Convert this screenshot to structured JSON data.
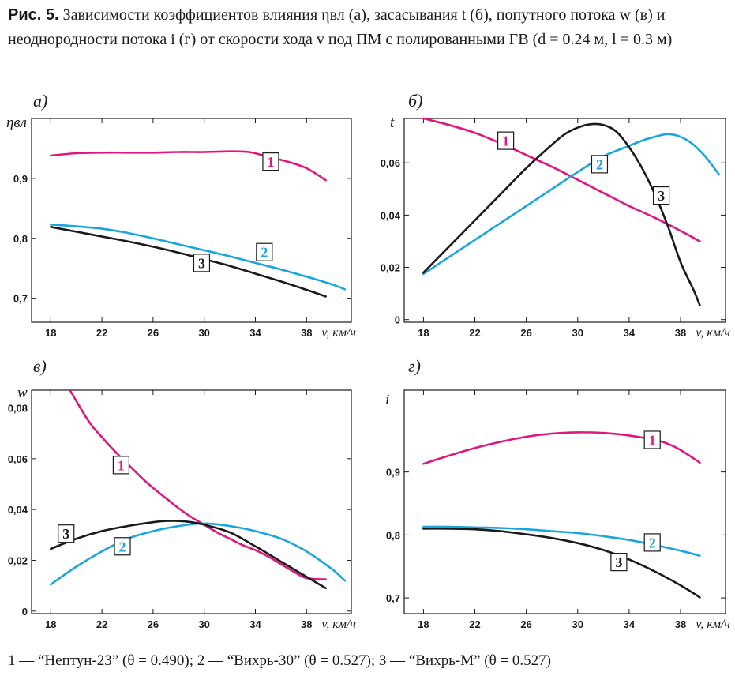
{
  "caption": {
    "label": "Рис. 5.",
    "text": "Зависимости коэффициентов влияния ηвл (а), засасывания t (б), попутного потока w (в) и неоднородности потока i (г) от скорости хода v под ПМ с полированными ГВ (d = 0.24 м, l = 0.3 м)"
  },
  "legend_text": "1 — “Нептун-23” (θ = 0.490); 2 — “Вихрь-30” (θ = 0.527); 3 — “Вихрь-М” (θ = 0.527)",
  "colors": {
    "1": "#e0157f",
    "2": "#1aa6dc",
    "3": "#1a1a1a"
  },
  "chart_data": [
    {
      "type": "line",
      "panel_label": "а)",
      "ylabel": "ηвл",
      "xlabel": "v, км/ч",
      "xlim": [
        16.5,
        41.5
      ],
      "ylim": [
        0.66,
        1.0
      ],
      "xticks": [
        18,
        22,
        26,
        30,
        34,
        38
      ],
      "xtick_labels": [
        "18",
        "22",
        "26",
        "30",
        "34",
        "38"
      ],
      "yticks": [
        0.7,
        0.8,
        0.9
      ],
      "ytick_labels": [
        "0,7",
        "0,8",
        "0,9"
      ],
      "grid": false,
      "series": [
        {
          "id": "1",
          "x": [
            18,
            20,
            22,
            24,
            26,
            28,
            30,
            32,
            33.5,
            35,
            36.5,
            38,
            39.5
          ],
          "y": [
            0.938,
            0.942,
            0.943,
            0.943,
            0.943,
            0.944,
            0.944,
            0.945,
            0.944,
            0.936,
            0.928,
            0.917,
            0.897
          ],
          "marker": {
            "label": "1",
            "x": 35.2,
            "y": 0.928
          }
        },
        {
          "id": "2",
          "x": [
            18,
            20,
            22,
            24,
            26,
            28,
            30,
            32,
            34,
            36,
            38,
            40,
            41
          ],
          "y": [
            0.823,
            0.82,
            0.816,
            0.809,
            0.8,
            0.79,
            0.78,
            0.77,
            0.759,
            0.748,
            0.736,
            0.723,
            0.715
          ],
          "marker": {
            "label": "2",
            "x": 34.7,
            "y": 0.777
          }
        },
        {
          "id": "3",
          "x": [
            18,
            20,
            22,
            24,
            26,
            28,
            30,
            32,
            34,
            36,
            38,
            39.5
          ],
          "y": [
            0.819,
            0.811,
            0.803,
            0.795,
            0.786,
            0.776,
            0.765,
            0.754,
            0.741,
            0.728,
            0.714,
            0.703
          ],
          "marker": {
            "label": "3",
            "x": 29.8,
            "y": 0.759
          }
        }
      ]
    },
    {
      "type": "line",
      "panel_label": "б)",
      "ylabel": "t",
      "xlabel": "v, км/ч",
      "xlim": [
        16.5,
        41.5
      ],
      "ylim": [
        -0.001,
        0.077
      ],
      "xticks": [
        18,
        22,
        26,
        30,
        34,
        38
      ],
      "xtick_labels": [
        "18",
        "22",
        "26",
        "30",
        "34",
        "38"
      ],
      "yticks": [
        0,
        0.02,
        0.04,
        0.06
      ],
      "ytick_labels": [
        "0",
        "0,02",
        "0,04",
        "0,06"
      ],
      "grid": false,
      "series": [
        {
          "id": "1",
          "x": [
            18,
            20,
            22,
            24,
            26,
            28,
            30,
            32,
            34,
            36,
            38,
            39.5
          ],
          "y": [
            0.077,
            0.0745,
            0.0715,
            0.0675,
            0.063,
            0.0585,
            0.0535,
            0.0485,
            0.0435,
            0.039,
            0.034,
            0.03
          ],
          "marker": {
            "label": "1",
            "x": 24.4,
            "y": 0.0685
          }
        },
        {
          "id": "2",
          "x": [
            18,
            20,
            22,
            24,
            26,
            28,
            30,
            32,
            34,
            35,
            36,
            37,
            38,
            39,
            40,
            41
          ],
          "y": [
            0.0175,
            0.024,
            0.0305,
            0.037,
            0.0435,
            0.05,
            0.0565,
            0.0625,
            0.0665,
            0.0685,
            0.07,
            0.071,
            0.07,
            0.067,
            0.062,
            0.0555
          ],
          "marker": {
            "label": "2",
            "x": 31.7,
            "y": 0.0595
          }
        },
        {
          "id": "3",
          "x": [
            18,
            20,
            22,
            24,
            26,
            28,
            29,
            30,
            31,
            32,
            33,
            34,
            35,
            36,
            37,
            38,
            39,
            39.5
          ],
          "y": [
            0.018,
            0.028,
            0.038,
            0.048,
            0.058,
            0.067,
            0.071,
            0.0735,
            0.0748,
            0.0745,
            0.072,
            0.066,
            0.058,
            0.048,
            0.036,
            0.022,
            0.0115,
            0.0055
          ],
          "marker": {
            "label": "3",
            "x": 36.5,
            "y": 0.0475
          }
        }
      ]
    },
    {
      "type": "line",
      "panel_label": "в)",
      "ylabel": "w",
      "xlabel": "v, км/ч",
      "xlim": [
        16.5,
        41.5
      ],
      "ylim": [
        -0.001,
        0.087
      ],
      "xticks": [
        18,
        22,
        26,
        30,
        34,
        38
      ],
      "xtick_labels": [
        "18",
        "22",
        "26",
        "30",
        "34",
        "38"
      ],
      "yticks": [
        0,
        0.02,
        0.04,
        0.06,
        0.08
      ],
      "ytick_labels": [
        "0",
        "0,02",
        "0,04",
        "0,06",
        "0,08"
      ],
      "grid": false,
      "series": [
        {
          "id": "1",
          "x": [
            19.5,
            21,
            22,
            23,
            24,
            25,
            26,
            27,
            28,
            29,
            30,
            31,
            32,
            33,
            34,
            35,
            36,
            37,
            38,
            39.5
          ],
          "y": [
            0.087,
            0.0745,
            0.0685,
            0.063,
            0.058,
            0.053,
            0.0485,
            0.0445,
            0.0405,
            0.037,
            0.034,
            0.031,
            0.0285,
            0.026,
            0.024,
            0.0215,
            0.0185,
            0.0155,
            0.013,
            0.0125
          ],
          "marker": {
            "label": "1",
            "x": 23.5,
            "y": 0.0575
          }
        },
        {
          "id": "2",
          "x": [
            18,
            20,
            22,
            24,
            26,
            28,
            30,
            32,
            34,
            36,
            38,
            40,
            41
          ],
          "y": [
            0.0105,
            0.0175,
            0.0235,
            0.0285,
            0.0315,
            0.0335,
            0.0345,
            0.0335,
            0.0315,
            0.0285,
            0.0235,
            0.0165,
            0.012
          ],
          "marker": {
            "label": "2",
            "x": 23.6,
            "y": 0.0255
          }
        },
        {
          "id": "3",
          "x": [
            18,
            20,
            22,
            24,
            26,
            27,
            28,
            29,
            30,
            32,
            34,
            36,
            38,
            39.5
          ],
          "y": [
            0.0245,
            0.0285,
            0.0315,
            0.0335,
            0.035,
            0.0355,
            0.0355,
            0.035,
            0.034,
            0.031,
            0.0255,
            0.0195,
            0.0135,
            0.009
          ],
          "marker": {
            "label": "3",
            "x": 19.2,
            "y": 0.0305
          }
        }
      ]
    },
    {
      "type": "line",
      "panel_label": "г)",
      "ylabel": "i",
      "xlabel": "v, км/ч",
      "xlim": [
        16.5,
        41.5
      ],
      "ylim": [
        0.675,
        1.03
      ],
      "xticks": [
        18,
        22,
        26,
        30,
        34,
        38
      ],
      "xtick_labels": [
        "18",
        "22",
        "26",
        "30",
        "34",
        "38"
      ],
      "yticks": [
        0.7,
        0.8,
        0.9
      ],
      "ytick_labels": [
        "0,7",
        "0,8",
        "0,9"
      ],
      "grid": false,
      "series": [
        {
          "id": "1",
          "x": [
            18,
            20,
            22,
            24,
            26,
            28,
            30,
            32,
            34,
            36,
            37,
            38,
            39.5
          ],
          "y": [
            0.913,
            0.926,
            0.938,
            0.948,
            0.956,
            0.961,
            0.963,
            0.962,
            0.958,
            0.951,
            0.945,
            0.935,
            0.915
          ],
          "marker": {
            "label": "1",
            "x": 35.8,
            "y": 0.951
          }
        },
        {
          "id": "2",
          "x": [
            18,
            20,
            22,
            24,
            26,
            28,
            30,
            32,
            34,
            36,
            38,
            39.5
          ],
          "y": [
            0.813,
            0.813,
            0.812,
            0.811,
            0.809,
            0.806,
            0.803,
            0.798,
            0.792,
            0.784,
            0.775,
            0.767
          ],
          "marker": {
            "label": "2",
            "x": 35.8,
            "y": 0.788
          }
        },
        {
          "id": "3",
          "x": [
            18,
            20,
            22,
            24,
            26,
            28,
            30,
            32,
            34,
            36,
            38,
            39.5
          ],
          "y": [
            0.81,
            0.81,
            0.809,
            0.806,
            0.801,
            0.795,
            0.787,
            0.776,
            0.761,
            0.742,
            0.72,
            0.701
          ],
          "marker": {
            "label": "3",
            "x": 33.2,
            "y": 0.757
          }
        }
      ]
    }
  ]
}
